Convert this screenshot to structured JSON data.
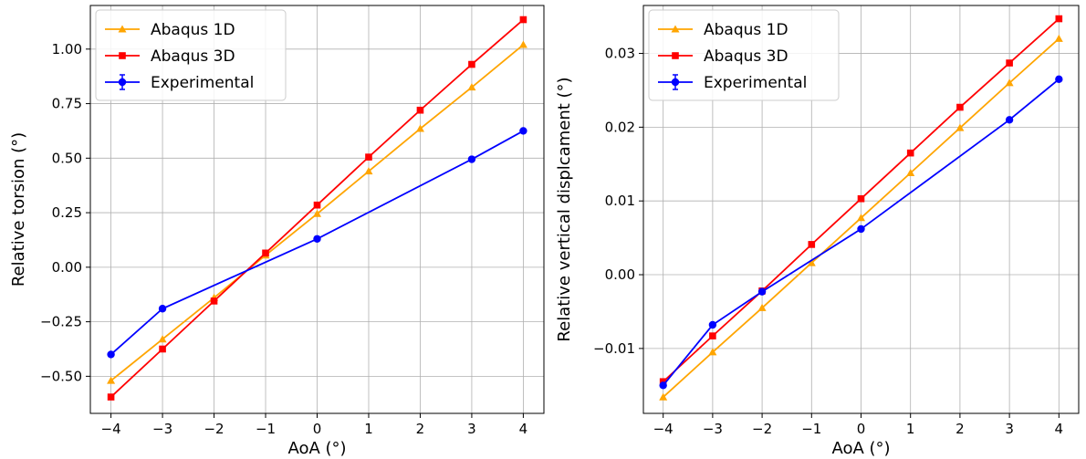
{
  "chart_data": [
    {
      "type": "line",
      "title": "",
      "xlabel": "AoA (°)",
      "ylabel": "Relative torsion (°)",
      "xlim": [
        -4.4,
        4.4
      ],
      "ylim": [
        -0.67,
        1.2
      ],
      "xticks": [
        -4,
        -3,
        -2,
        -1,
        0,
        1,
        2,
        3,
        4
      ],
      "xtick_labels": [
        "−4",
        "−3",
        "−2",
        "−1",
        "0",
        "1",
        "2",
        "3",
        "4"
      ],
      "yticks": [
        -0.5,
        -0.25,
        0.0,
        0.25,
        0.5,
        0.75,
        1.0
      ],
      "ytick_labels": [
        "−0.50",
        "−0.25",
        "0.00",
        "0.25",
        "0.50",
        "0.75",
        "1.00"
      ],
      "grid": true,
      "legend_position": "top-left",
      "x": [
        -4,
        -3,
        -2,
        -1,
        0,
        1,
        2,
        3,
        4
      ],
      "series": [
        {
          "name": "Abaqus 1D",
          "color": "#FFA500",
          "marker": "triangle",
          "values": [
            -0.52,
            -0.33,
            -0.14,
            0.055,
            0.245,
            0.44,
            0.635,
            0.825,
            1.02
          ]
        },
        {
          "name": "Abaqus 3D",
          "color": "#FF0000",
          "marker": "square",
          "values": [
            -0.595,
            -0.375,
            -0.155,
            0.065,
            0.285,
            0.505,
            0.72,
            0.93,
            1.135
          ]
        },
        {
          "name": "Experimental",
          "color": "#0000FF",
          "marker": "circle",
          "errorbar": true,
          "x": [
            -4,
            -3,
            0,
            3,
            4
          ],
          "values": [
            -0.4,
            -0.19,
            0.13,
            0.495,
            0.625
          ]
        }
      ]
    },
    {
      "type": "line",
      "title": "",
      "xlabel": "AoA (°)",
      "ylabel": "Relative vertical displcament (°)",
      "xlim": [
        -4.4,
        4.4
      ],
      "ylim": [
        -0.0188,
        0.0365
      ],
      "xticks": [
        -4,
        -3,
        -2,
        -1,
        0,
        1,
        2,
        3,
        4
      ],
      "xtick_labels": [
        "−4",
        "−3",
        "−2",
        "−1",
        "0",
        "1",
        "2",
        "3",
        "4"
      ],
      "yticks": [
        -0.01,
        0.0,
        0.01,
        0.02,
        0.03
      ],
      "ytick_labels": [
        "−0.01",
        "0.00",
        "0.01",
        "0.02",
        "0.03"
      ],
      "grid": true,
      "legend_position": "top-left",
      "x": [
        -4,
        -3,
        -2,
        -1,
        0,
        1,
        2,
        3,
        4
      ],
      "series": [
        {
          "name": "Abaqus 1D",
          "color": "#FFA500",
          "marker": "triangle",
          "values": [
            -0.0166,
            -0.0105,
            -0.0045,
            0.0016,
            0.0077,
            0.0138,
            0.0199,
            0.026,
            0.032
          ]
        },
        {
          "name": "Abaqus 3D",
          "color": "#FF0000",
          "marker": "square",
          "values": [
            -0.0145,
            -0.0083,
            -0.0022,
            0.0041,
            0.0103,
            0.0165,
            0.0227,
            0.0287,
            0.0347
          ]
        },
        {
          "name": "Experimental",
          "color": "#0000FF",
          "marker": "circle",
          "errorbar": true,
          "x": [
            -4,
            -3,
            -2,
            0,
            3,
            4
          ],
          "values": [
            -0.015,
            -0.0068,
            -0.0023,
            0.0062,
            0.021,
            0.0265
          ]
        }
      ]
    }
  ]
}
